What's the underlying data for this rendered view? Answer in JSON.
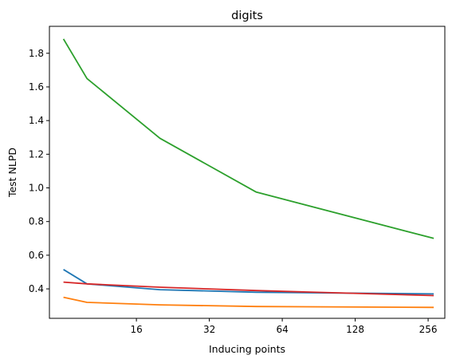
{
  "chart_data": {
    "type": "line",
    "title": "digits",
    "xlabel": "Inducing points",
    "ylabel": "Test NLPD",
    "x_scale": "log2",
    "xlim": [
      7.0,
      300.0
    ],
    "ylim": [
      0.225,
      1.96
    ],
    "x_ticks": [
      16,
      32,
      64,
      128,
      256
    ],
    "x_tick_labels": [
      "16",
      "32",
      "64",
      "128",
      "256"
    ],
    "y_ticks": [
      0.4,
      0.6,
      0.8,
      1.0,
      1.2,
      1.4,
      1.6,
      1.8
    ],
    "y_tick_labels": [
      "0.4",
      "0.6",
      "0.8",
      "1.0",
      "1.2",
      "1.4",
      "1.6",
      "1.8"
    ],
    "grid": false,
    "series": [
      {
        "color": "#1f77b4",
        "x": [
          8,
          10,
          20,
          50,
          270
        ],
        "y": [
          0.515,
          0.43,
          0.395,
          0.38,
          0.37
        ]
      },
      {
        "color": "#ff7f0e",
        "x": [
          8,
          10,
          20,
          50,
          270
        ],
        "y": [
          0.35,
          0.32,
          0.305,
          0.295,
          0.29
        ]
      },
      {
        "color": "#2ca02c",
        "x": [
          8,
          10,
          20,
          50,
          270
        ],
        "y": [
          1.885,
          1.65,
          1.295,
          0.975,
          0.7
        ]
      },
      {
        "color": "#d62728",
        "x": [
          8,
          10,
          20,
          50,
          270
        ],
        "y": [
          0.44,
          0.43,
          0.41,
          0.39,
          0.36
        ]
      }
    ]
  }
}
